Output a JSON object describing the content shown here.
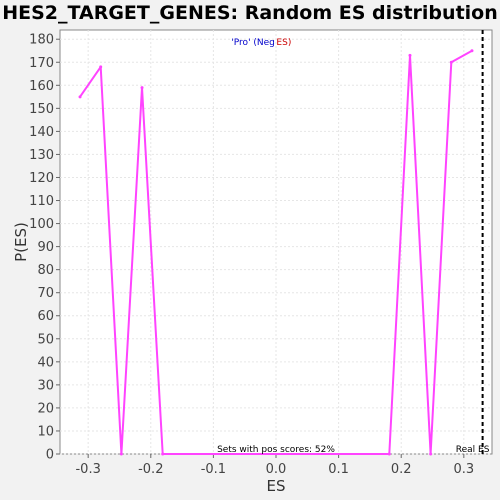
{
  "chart_data": {
    "type": "line",
    "title": "HES2_TARGET_GENES: Random ES distribution",
    "xlabel": "ES",
    "ylabel": "P(ES)",
    "xlim": [
      -0.345,
      0.345
    ],
    "ylim": [
      0,
      184
    ],
    "xticks": [
      -0.3,
      -0.2,
      -0.1,
      0.0,
      0.1,
      0.2,
      0.3
    ],
    "xtick_labels": [
      "-0.3",
      "-0.2",
      "-0.1",
      "0.0",
      "0.1",
      "0.2",
      "0.3"
    ],
    "yticks": [
      0,
      10,
      20,
      30,
      40,
      50,
      60,
      70,
      80,
      90,
      100,
      110,
      120,
      130,
      140,
      150,
      160,
      170,
      180
    ],
    "grid": true,
    "series": [
      {
        "color": "#ff44ff",
        "x": [
          -0.313,
          -0.28,
          -0.247,
          -0.214,
          -0.181,
          0.181,
          0.214,
          0.247,
          0.28,
          0.313
        ],
        "y": [
          155,
          168,
          0,
          159,
          0,
          0,
          173,
          0,
          170,
          175
        ]
      }
    ],
    "real_es": {
      "x": 0.33,
      "label": "Real ES"
    },
    "legend": {
      "neg_label": "'Pro' (Neg ES)",
      "pos_label": "'Pro' (Pos ES)",
      "neg_color": "#0000cc",
      "pos_color": "#cc0000",
      "placement": "top-center"
    },
    "annotation": "Sets with pos scores: 52%"
  }
}
